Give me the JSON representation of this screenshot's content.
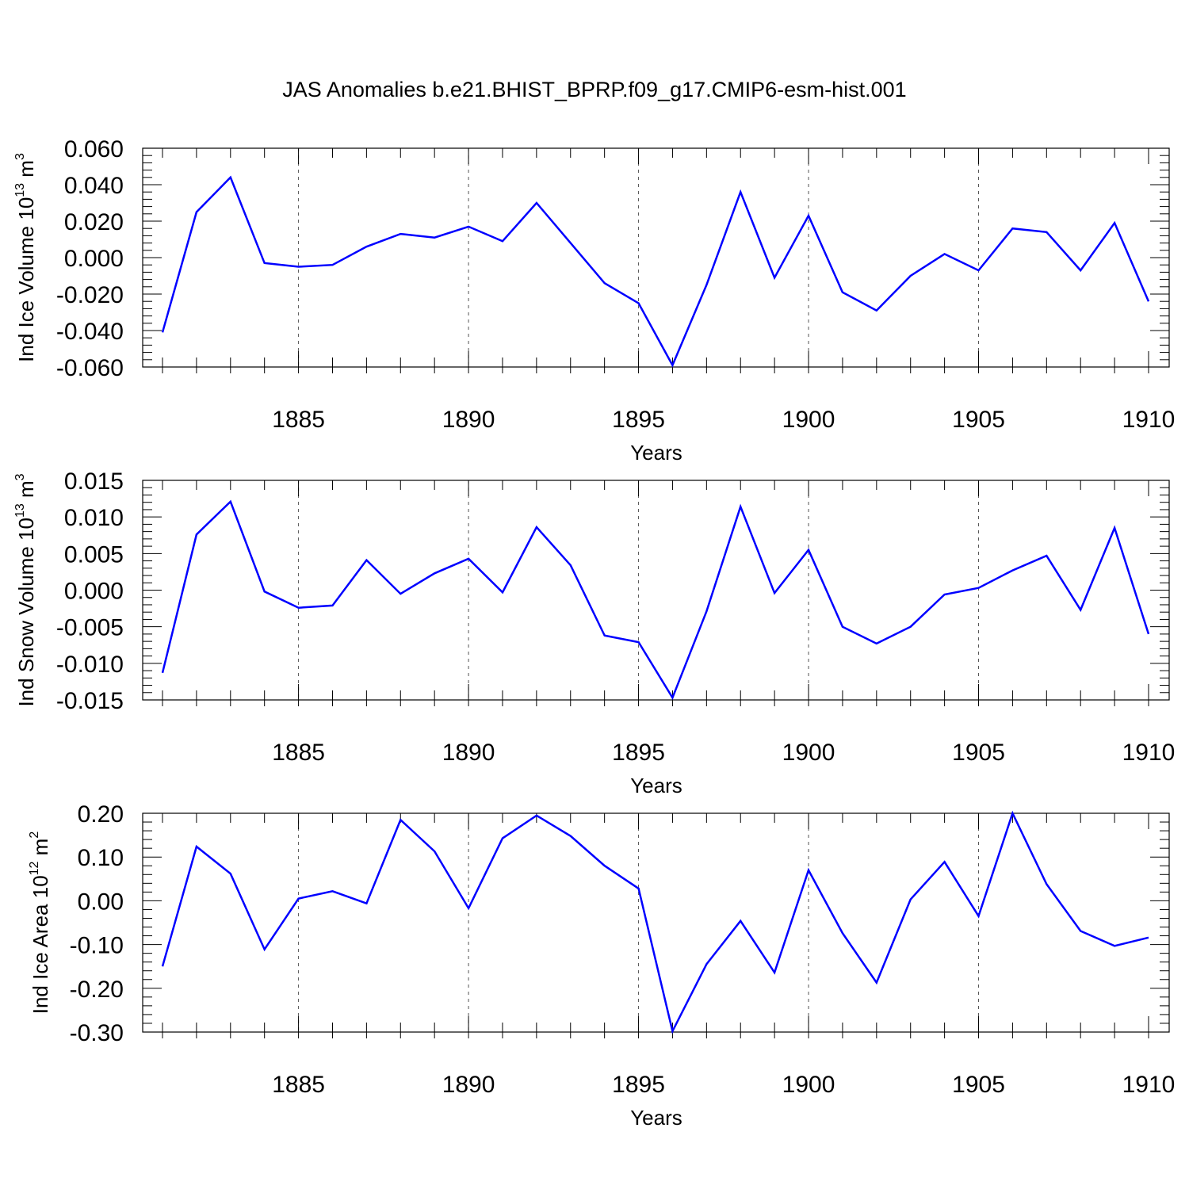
{
  "title": "JAS Anomalies b.e21.BHIST_BPRP.f09_g17.CMIP6-esm-hist.001",
  "chart_data": [
    {
      "type": "line",
      "ylabel": "Ind Ice Volume 10",
      "ylabel_sup": "13",
      "ylabel_unit": " m",
      "ylabel_unit_sup": "3",
      "xlabel": "Years",
      "xlim": [
        1881,
        1910
      ],
      "ylim": [
        -0.06,
        0.06
      ],
      "yticks": [
        -0.06,
        -0.04,
        -0.02,
        0.0,
        0.02,
        0.04,
        0.06
      ],
      "ytick_labels": [
        "-0.060",
        "-0.040",
        "-0.020",
        "0.000",
        "0.020",
        "0.040",
        "0.060"
      ],
      "xticks": [
        1885,
        1890,
        1895,
        1900,
        1905,
        1910
      ],
      "xtick_labels": [
        "1885",
        "1890",
        "1895",
        "1900",
        "1905",
        "1910"
      ],
      "grid": "vertical dashed at labeled years",
      "line_color": "#0000ff",
      "x": [
        1881,
        1882,
        1883,
        1884,
        1885,
        1886,
        1887,
        1888,
        1889,
        1890,
        1891,
        1892,
        1893,
        1894,
        1895,
        1896,
        1897,
        1898,
        1899,
        1900,
        1901,
        1902,
        1903,
        1904,
        1905,
        1906,
        1907,
        1908,
        1909,
        1910
      ],
      "values": [
        -0.041,
        0.025,
        0.044,
        -0.003,
        -0.005,
        -0.004,
        0.006,
        0.013,
        0.011,
        0.017,
        0.009,
        0.03,
        0.008,
        -0.014,
        -0.025,
        -0.059,
        -0.015,
        0.036,
        -0.011,
        0.023,
        -0.019,
        -0.029,
        -0.01,
        0.002,
        -0.007,
        0.016,
        0.014,
        -0.007,
        0.019,
        -0.024
      ]
    },
    {
      "type": "line",
      "ylabel": "Ind Snow Volume 10",
      "ylabel_sup": "13",
      "ylabel_unit": " m",
      "ylabel_unit_sup": "3",
      "xlabel": "Years",
      "xlim": [
        1881,
        1910
      ],
      "ylim": [
        -0.015,
        0.015
      ],
      "yticks": [
        -0.015,
        -0.01,
        -0.005,
        0.0,
        0.005,
        0.01,
        0.015
      ],
      "ytick_labels": [
        "-0.015",
        "-0.010",
        "-0.005",
        "0.000",
        "0.005",
        "0.010",
        "0.015"
      ],
      "xticks": [
        1885,
        1890,
        1895,
        1900,
        1905,
        1910
      ],
      "xtick_labels": [
        "1885",
        "1890",
        "1895",
        "1900",
        "1905",
        "1910"
      ],
      "grid": "vertical dashed at labeled years",
      "line_color": "#0000ff",
      "x": [
        1881,
        1882,
        1883,
        1884,
        1885,
        1886,
        1887,
        1888,
        1889,
        1890,
        1891,
        1892,
        1893,
        1894,
        1895,
        1896,
        1897,
        1898,
        1899,
        1900,
        1901,
        1902,
        1903,
        1904,
        1905,
        1906,
        1907,
        1908,
        1909,
        1910
      ],
      "values": [
        -0.0113,
        0.0076,
        0.0121,
        -0.0002,
        -0.0024,
        -0.0021,
        0.0041,
        -0.0005,
        0.0023,
        0.0043,
        -0.0003,
        0.0086,
        0.0034,
        -0.0062,
        -0.0071,
        -0.0147,
        -0.0029,
        0.0114,
        -0.0004,
        0.0055,
        -0.005,
        -0.0073,
        -0.005,
        -0.0006,
        0.0003,
        0.0027,
        0.0047,
        -0.0027,
        0.0085,
        -0.006
      ]
    },
    {
      "type": "line",
      "ylabel": "Ind Ice Area 10",
      "ylabel_sup": "12",
      "ylabel_unit": " m",
      "ylabel_unit_sup": "2",
      "xlabel": "Years",
      "xlim": [
        1881,
        1910
      ],
      "ylim": [
        -0.3,
        0.2
      ],
      "yticks": [
        -0.3,
        -0.2,
        -0.1,
        0.0,
        0.1,
        0.2
      ],
      "ytick_labels": [
        "-0.30",
        "-0.20",
        "-0.10",
        "0.00",
        "0.10",
        "0.20"
      ],
      "xticks": [
        1885,
        1890,
        1895,
        1900,
        1905,
        1910
      ],
      "xtick_labels": [
        "1885",
        "1890",
        "1895",
        "1900",
        "1905",
        "1910"
      ],
      "grid": "vertical dashed at labeled years",
      "line_color": "#0000ff",
      "x": [
        1881,
        1882,
        1883,
        1884,
        1885,
        1886,
        1887,
        1888,
        1889,
        1890,
        1891,
        1892,
        1893,
        1894,
        1895,
        1896,
        1897,
        1898,
        1899,
        1900,
        1901,
        1902,
        1903,
        1904,
        1905,
        1906,
        1907,
        1908,
        1909,
        1910
      ],
      "values": [
        -0.15,
        0.124,
        0.062,
        -0.111,
        0.005,
        0.022,
        -0.006,
        0.185,
        0.113,
        -0.017,
        0.143,
        0.195,
        0.148,
        0.08,
        0.028,
        -0.298,
        -0.145,
        -0.046,
        -0.164,
        0.07,
        -0.074,
        -0.187,
        0.003,
        0.089,
        -0.035,
        0.2,
        0.038,
        -0.069,
        -0.103,
        -0.084
      ]
    }
  ]
}
